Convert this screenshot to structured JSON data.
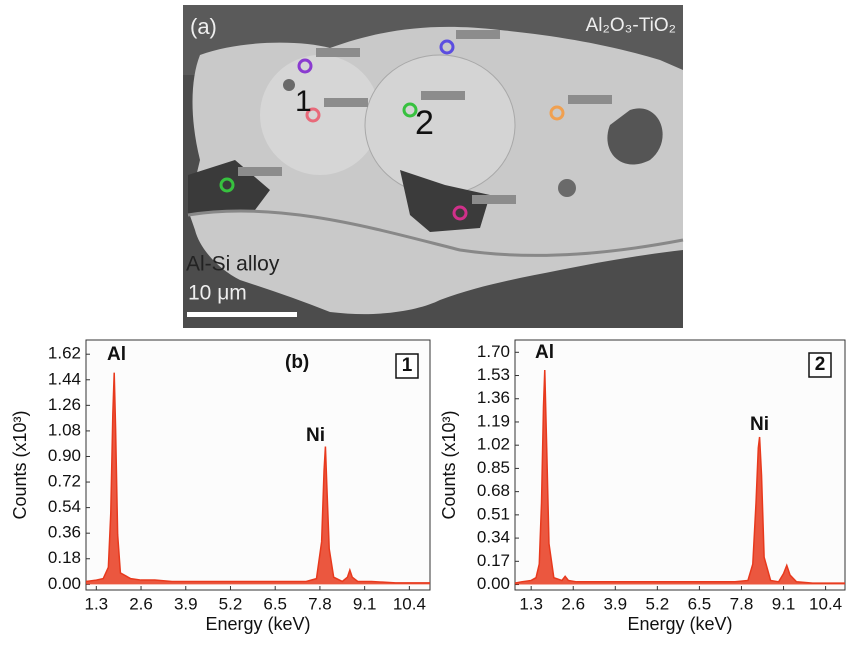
{
  "image": {
    "panel_label": "(a)",
    "phase_label": "Al₂O₃-TiO₂",
    "substrate_label": "Al-Si alloy",
    "scale_bar": "10 μm",
    "regions": [
      "1",
      "2"
    ]
  },
  "chart_data": [
    {
      "type": "area",
      "color": "#e8391d",
      "x_label": "Energy (keV)",
      "y_label": "Counts (x10³)",
      "annotations": [
        "Al",
        "(b)",
        "1",
        "Ni"
      ],
      "x": [
        1.0,
        1.3,
        1.5,
        1.65,
        1.72,
        1.78,
        1.82,
        1.86,
        1.92,
        2.0,
        2.3,
        2.6,
        3.0,
        3.5,
        4.0,
        4.5,
        5.0,
        5.5,
        6.0,
        6.5,
        7.0,
        7.4,
        7.7,
        7.85,
        7.92,
        7.96,
        8.0,
        8.07,
        8.2,
        8.45,
        8.6,
        8.67,
        8.74,
        8.9,
        9.3,
        10.0,
        10.4,
        11.0
      ],
      "values": [
        0.02,
        0.03,
        0.04,
        0.12,
        0.5,
        1.2,
        1.49,
        1.1,
        0.35,
        0.08,
        0.04,
        0.03,
        0.03,
        0.02,
        0.02,
        0.02,
        0.02,
        0.02,
        0.02,
        0.02,
        0.02,
        0.02,
        0.04,
        0.3,
        0.8,
        0.97,
        0.7,
        0.25,
        0.05,
        0.02,
        0.05,
        0.1,
        0.05,
        0.02,
        0.02,
        0.01,
        0.01,
        0.01
      ],
      "xlim": [
        1.0,
        11.0
      ],
      "ylim": [
        -0.04,
        1.72
      ],
      "xticks": [
        1.3,
        2.6,
        3.9,
        5.2,
        6.5,
        7.8,
        9.1,
        10.4
      ],
      "yticks": [
        {
          "value": 0,
          "label": "0.00"
        },
        0.18,
        0.36,
        0.54,
        0.72,
        {
          "value": 0.9,
          "label": "0.90"
        },
        1.08,
        1.26,
        1.44,
        1.62
      ],
      "grid": false
    },
    {
      "type": "area",
      "color": "#e8391d",
      "x_label": "Energy (keV)",
      "y_label": "Counts (x10³)",
      "annotations": [
        "Al",
        "2",
        "Ni"
      ],
      "x": [
        0.8,
        1.0,
        1.3,
        1.45,
        1.55,
        1.62,
        1.68,
        1.72,
        1.78,
        1.85,
        2.0,
        2.25,
        2.35,
        2.45,
        2.7,
        3.0,
        4.0,
        5.0,
        6.0,
        7.0,
        7.6,
        8.0,
        8.15,
        8.25,
        8.32,
        8.36,
        8.42,
        8.5,
        8.7,
        8.95,
        9.1,
        9.2,
        9.3,
        9.5,
        10.0,
        11.0
      ],
      "values": [
        0.01,
        0.02,
        0.03,
        0.05,
        0.15,
        0.6,
        1.3,
        1.57,
        1.0,
        0.3,
        0.05,
        0.03,
        0.06,
        0.03,
        0.02,
        0.02,
        0.02,
        0.02,
        0.02,
        0.02,
        0.02,
        0.03,
        0.15,
        0.6,
        1.0,
        1.08,
        0.8,
        0.2,
        0.03,
        0.02,
        0.08,
        0.14,
        0.07,
        0.02,
        0.01,
        0.01
      ],
      "xlim": [
        0.8,
        11.0
      ],
      "ylim": [
        -0.04,
        1.79
      ],
      "xticks": [
        1.3,
        2.6,
        3.9,
        5.2,
        6.5,
        7.8,
        9.1,
        10.4
      ],
      "yticks": [
        {
          "value": 0,
          "label": "0.00"
        },
        0.17,
        0.34,
        0.51,
        0.68,
        0.85,
        1.02,
        1.19,
        1.36,
        1.53,
        {
          "value": 1.7,
          "label": "1.70"
        }
      ],
      "grid": false
    }
  ]
}
